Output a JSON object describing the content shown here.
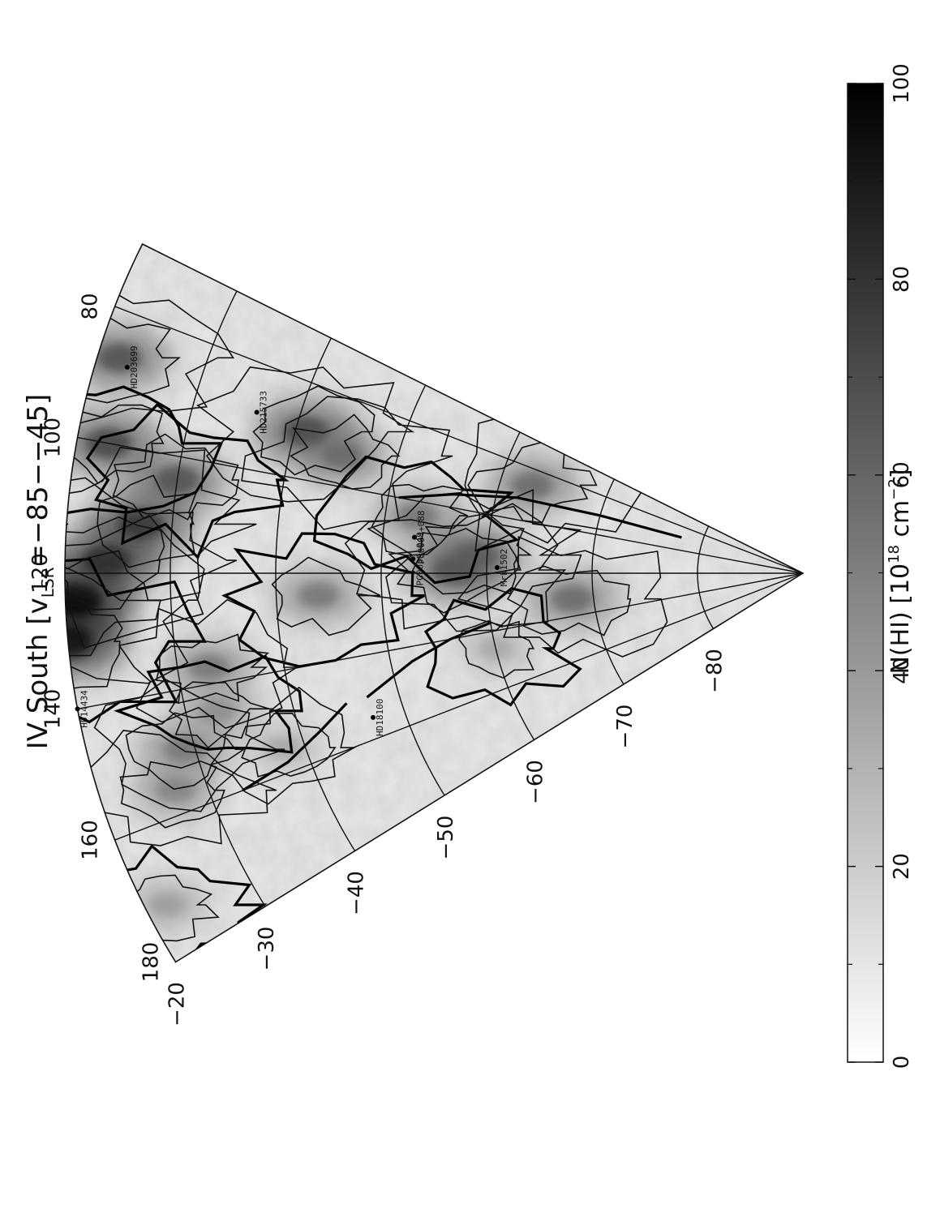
{
  "chart_data": {
    "type": "heatmap",
    "title": "IV South [v",
    "title_sub": "LSR",
    "title_range": "=−85−−45]",
    "longitude_ticks": [
      "180",
      "160",
      "140",
      "120",
      "100",
      "80"
    ],
    "latitude_ticks": [
      "−20",
      "−30",
      "−40",
      "−50",
      "−60",
      "−70",
      "−80"
    ],
    "lon_range": [
      180,
      70
    ],
    "lat_range": [
      -20,
      -90
    ],
    "colorbar": {
      "label_main": "N(HI) [10",
      "label_exp1": "18",
      "label_unit": " cm",
      "label_exp2": "−2",
      "label_end": "]",
      "ticks": [
        "0",
        "20",
        "40",
        "60",
        "80",
        "100"
      ],
      "range": [
        0,
        100
      ],
      "colormap": [
        "#ffffff",
        "#000000"
      ]
    },
    "source_labels": [
      {
        "text": "HD203699",
        "lon": 88,
        "lat": -23
      },
      {
        "text": "HD215733",
        "lon": 89,
        "lat": -36
      },
      {
        "text": "HD14434",
        "lon": 140,
        "lat": -20
      },
      {
        "text": "PG0039+049",
        "lon": 116,
        "lat": -53
      },
      {
        "text": "Mrk1502",
        "lon": 118,
        "lat": -61
      },
      {
        "text": "PG0004+088",
        "lon": 110,
        "lat": -53
      },
      {
        "text": "HD18100",
        "lon": 155,
        "lat": -47
      }
    ],
    "clouds": [
      {
        "lon": 130,
        "lat": -20,
        "level": 95
      },
      {
        "lon": 124,
        "lat": -21,
        "level": 100
      },
      {
        "lon": 118,
        "lat": -24,
        "level": 85
      },
      {
        "lon": 100,
        "lat": -23,
        "level": 75
      },
      {
        "lon": 87,
        "lat": -22,
        "level": 70
      },
      {
        "lon": 112,
        "lat": -27,
        "level": 80
      },
      {
        "lon": 104,
        "lat": -30,
        "level": 70
      },
      {
        "lon": 90,
        "lat": -41,
        "level": 75
      },
      {
        "lon": 93,
        "lat": -45,
        "level": 60
      },
      {
        "lon": 104,
        "lat": -53,
        "level": 55
      },
      {
        "lon": 119,
        "lat": -57,
        "level": 70
      },
      {
        "lon": 114,
        "lat": -59,
        "level": 65
      },
      {
        "lon": 125,
        "lat": -44,
        "level": 55
      },
      {
        "lon": 132,
        "lat": -68,
        "level": 60
      },
      {
        "lon": 137,
        "lat": -33,
        "level": 55
      },
      {
        "lon": 145,
        "lat": -33,
        "level": 45
      },
      {
        "lon": 150,
        "lat": -29,
        "level": 55
      },
      {
        "lon": 156,
        "lat": -27,
        "level": 50
      },
      {
        "lon": 172,
        "lat": -22,
        "level": 40
      },
      {
        "lon": 86,
        "lat": -63,
        "level": 60
      },
      {
        "lon": 155,
        "lat": -38,
        "level": 35
      },
      {
        "lon": 146,
        "lat": -60,
        "level": 35
      }
    ]
  }
}
